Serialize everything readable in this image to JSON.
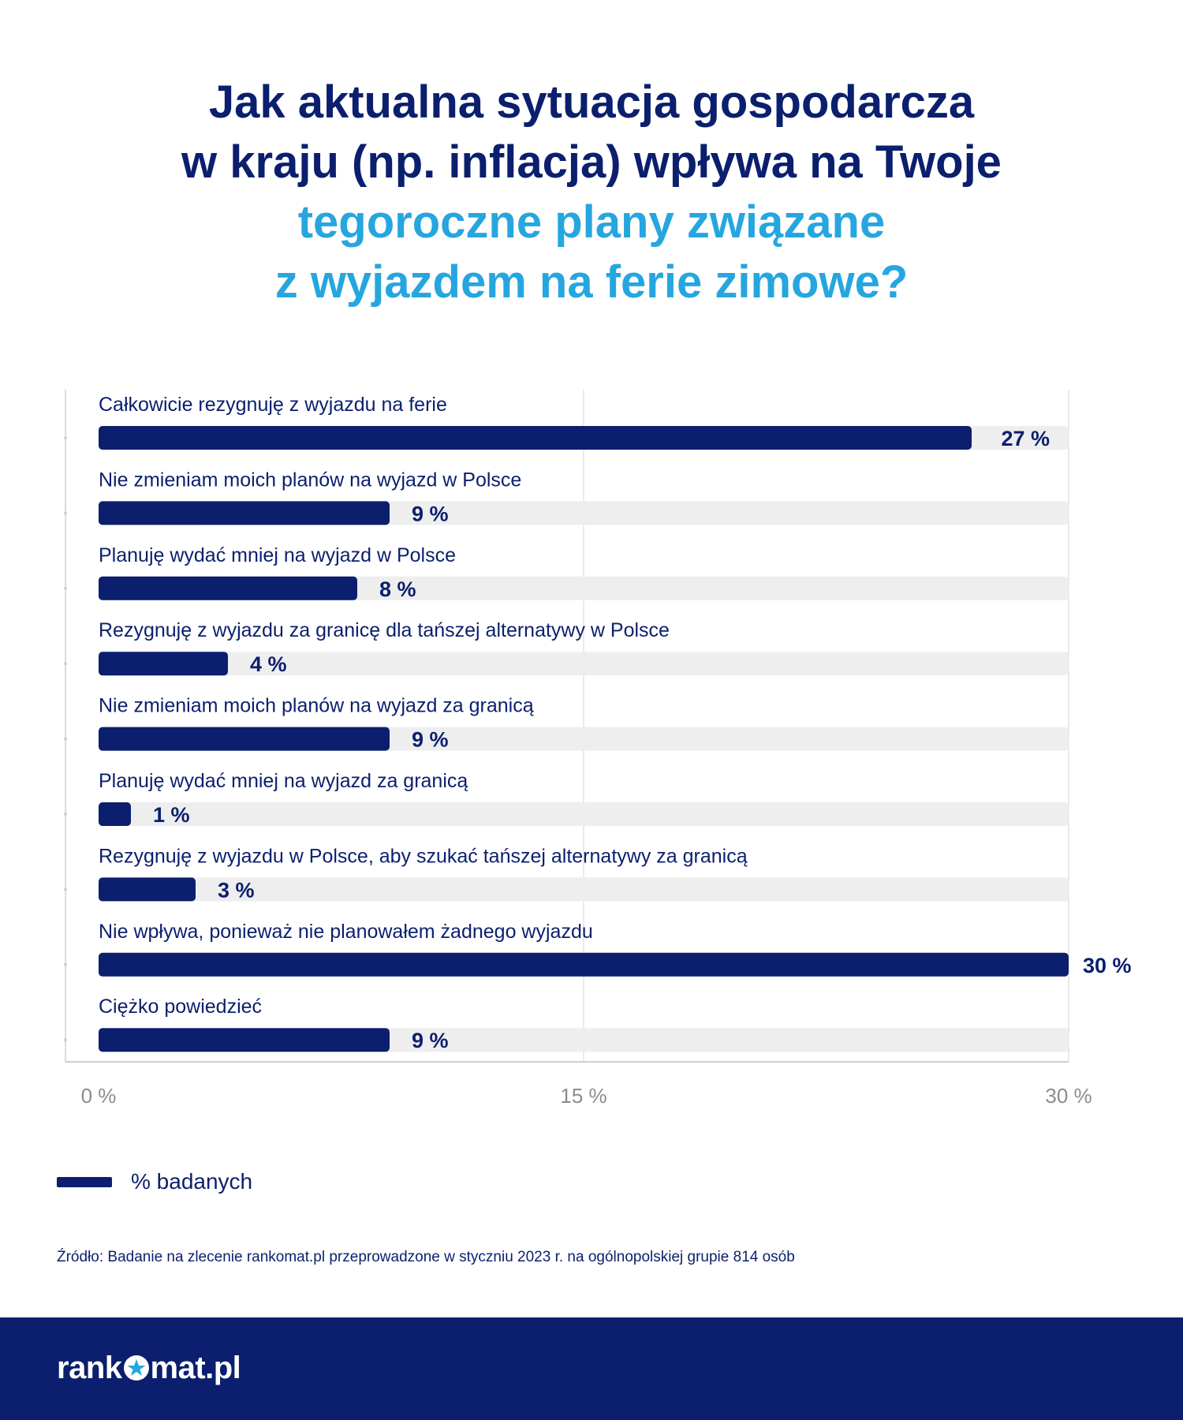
{
  "title": {
    "line1": "Jak aktualna sytuacja gospodarcza",
    "line2": "w kraju (np. inflacja) wpływa na Twoje",
    "line3": "tegoroczne plany związane",
    "line4": "z wyjazdem na ferie zimowe?"
  },
  "colors": {
    "bar": "#0b1f6e",
    "track": "#eeeeee",
    "title_dark": "#0b1f6e",
    "title_light": "#26a6df",
    "footer": "#0b1f6e"
  },
  "chart_data": {
    "type": "bar",
    "orientation": "horizontal",
    "categories": [
      "Całkowicie rezygnuję z wyjazdu na ferie",
      "Nie zmieniam moich planów na wyjazd w Polsce",
      "Planuję wydać mniej na wyjazd w Polsce",
      "Rezygnuję z wyjazdu za granicę dla tańszej alternatywy w Polsce",
      "Nie zmieniam moich planów na wyjazd za granicą",
      "Planuję wydać mniej na wyjazd za granicą",
      "Rezygnuję z wyjazdu w Polsce, aby szukać tańszej alternatywy za granicą",
      "Nie wpływa, ponieważ nie planowałem żadnego wyjazdu",
      "Ciężko powiedzieć"
    ],
    "series": [
      {
        "name": "% badanych",
        "values": [
          27,
          9,
          8,
          4,
          9,
          1,
          3,
          30,
          9
        ]
      }
    ],
    "value_labels": [
      "27 %",
      "9 %",
      "8 %",
      "4 %",
      "9 %",
      "1 %",
      "3 %",
      "30 %",
      "9 %"
    ],
    "xlim": [
      0,
      30
    ],
    "ticks": [
      0,
      15,
      30
    ],
    "tick_labels": [
      "0 %",
      "15 %",
      "30 %"
    ],
    "grid": true,
    "legend": "bottom-left"
  },
  "legend": {
    "label": "% badanych"
  },
  "source": "Źródło: Badanie na zlecenie rankomat.pl przeprowadzone w styczniu 2023 r. na ogólnopolskiej grupie 814 osób",
  "footer": {
    "logo_prefix": "rank",
    "logo_suffix": "mat.pl",
    "logo_mark": "star-o-icon"
  }
}
